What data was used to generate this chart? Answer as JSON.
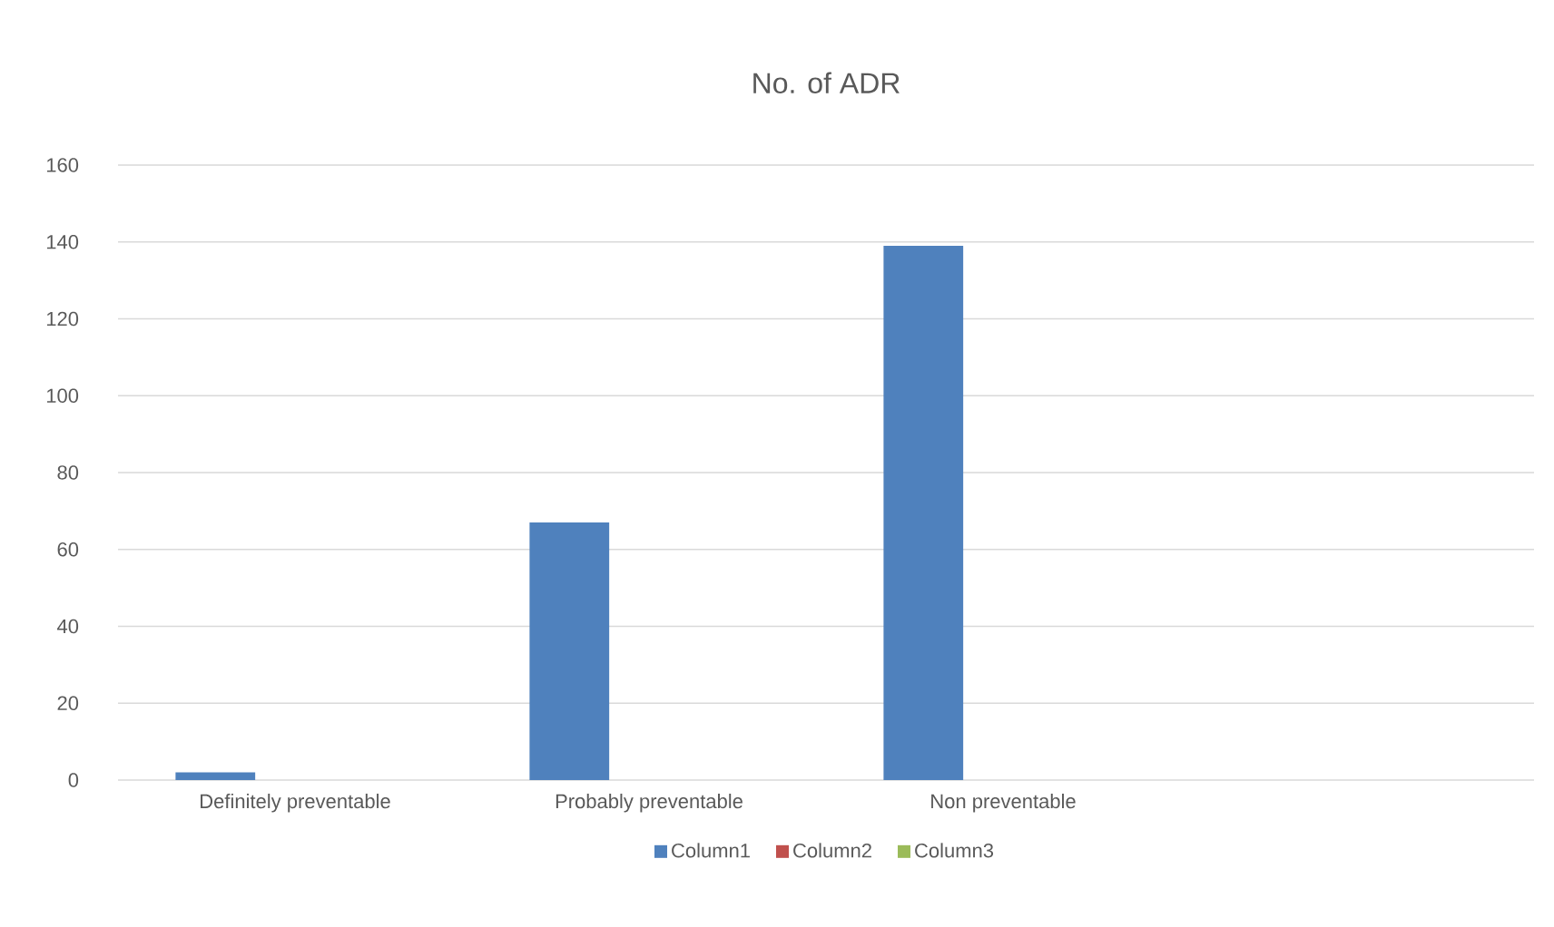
{
  "chart_data": {
    "type": "bar",
    "title": "No. of ADR",
    "categories": [
      "Definitely preventable",
      "Probably preventable",
      "Non preventable",
      null
    ],
    "series": [
      {
        "name": "Column1",
        "color": "#4f81bd",
        "values": [
          2,
          67,
          139,
          null
        ]
      },
      {
        "name": "Column2",
        "color": "#c0504d",
        "values": [
          null,
          null,
          null,
          null
        ]
      },
      {
        "name": "Column3",
        "color": "#9bbb59",
        "values": [
          null,
          null,
          null,
          null
        ]
      }
    ],
    "ylim": [
      0,
      160
    ],
    "yticks": [
      0,
      20,
      40,
      60,
      80,
      100,
      120,
      140,
      160
    ],
    "grid": "y",
    "legend": "bottom"
  }
}
